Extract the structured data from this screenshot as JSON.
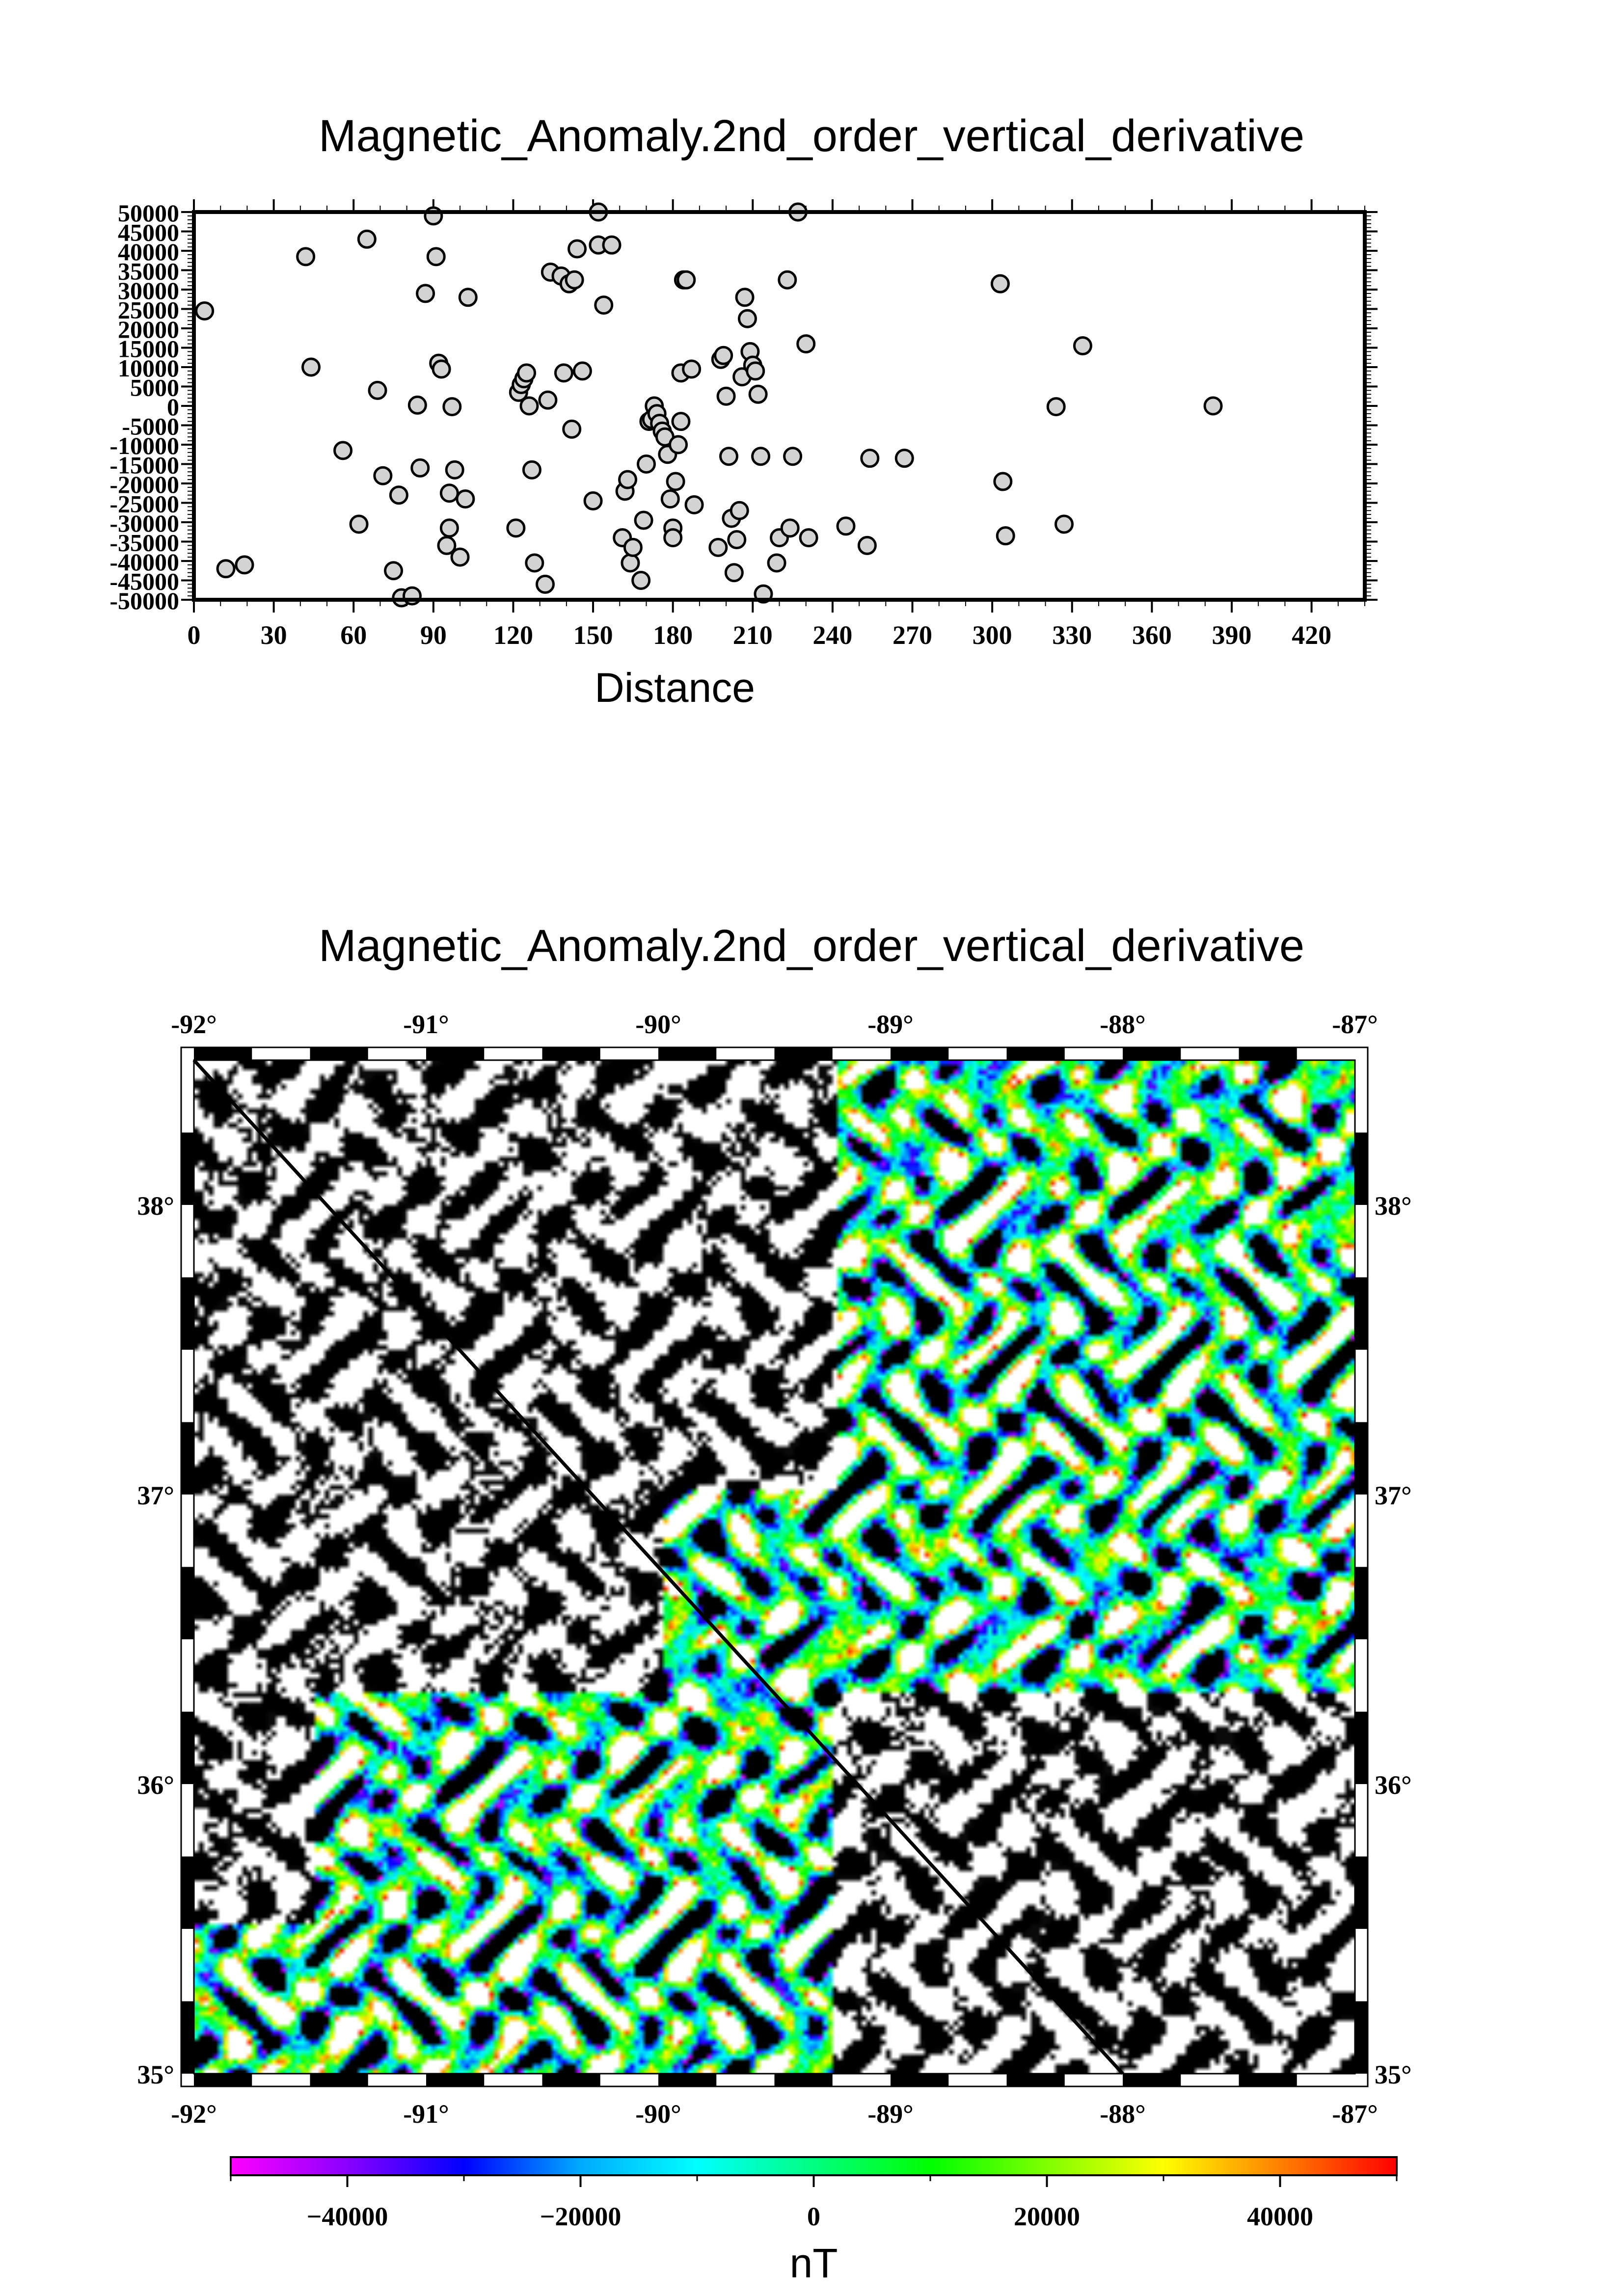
{
  "chart_data": [
    {
      "type": "scatter",
      "title": "Magnetic_Anomaly.2nd_order_vertical_derivative",
      "xlabel": "Distance",
      "ylabel": "",
      "xlim": [
        0,
        440
      ],
      "ylim": [
        -50000,
        50000
      ],
      "x_ticks": [
        0,
        30,
        60,
        90,
        120,
        150,
        180,
        210,
        240,
        270,
        300,
        330,
        360,
        390,
        420
      ],
      "y_ticks": [
        50000,
        45000,
        40000,
        35000,
        30000,
        25000,
        20000,
        15000,
        10000,
        5000,
        0,
        -5000,
        -10000,
        -15000,
        -20000,
        -25000,
        -30000,
        -35000,
        -40000,
        -45000,
        -50000
      ],
      "grid": false,
      "marker": {
        "shape": "circle",
        "fill": "#d3d3d3",
        "edge": "#000000"
      },
      "points": [
        [
          4,
          24500
        ],
        [
          12,
          -42000
        ],
        [
          19,
          -41000
        ],
        [
          42,
          38500
        ],
        [
          44,
          10000
        ],
        [
          56,
          -11500
        ],
        [
          62,
          -30500
        ],
        [
          65,
          43000
        ],
        [
          69,
          4000
        ],
        [
          71,
          -18000
        ],
        [
          75,
          -42500
        ],
        [
          77,
          -23000
        ],
        [
          78,
          -49500
        ],
        [
          82,
          -49000
        ],
        [
          84,
          200
        ],
        [
          85,
          -16000
        ],
        [
          87,
          29000
        ],
        [
          90,
          49000
        ],
        [
          91,
          38500
        ],
        [
          92,
          11000
        ],
        [
          93,
          9500
        ],
        [
          95,
          -36000
        ],
        [
          96,
          -31500
        ],
        [
          96,
          -22500
        ],
        [
          97,
          -200
        ],
        [
          98,
          -16500
        ],
        [
          100,
          -39000
        ],
        [
          102,
          -24000
        ],
        [
          103,
          28000
        ],
        [
          121,
          -31500
        ],
        [
          122,
          3500
        ],
        [
          123,
          5500
        ],
        [
          124,
          7000
        ],
        [
          125,
          8500
        ],
        [
          126,
          0
        ],
        [
          127,
          -16500
        ],
        [
          128,
          -40500
        ],
        [
          132,
          -46000
        ],
        [
          133,
          1500
        ],
        [
          134,
          34500
        ],
        [
          138,
          33500
        ],
        [
          139,
          8500
        ],
        [
          141,
          31500
        ],
        [
          142,
          -6000
        ],
        [
          143,
          32500
        ],
        [
          144,
          40500
        ],
        [
          146,
          9000
        ],
        [
          150,
          -24500
        ],
        [
          152,
          50000
        ],
        [
          152,
          41500
        ],
        [
          154,
          26000
        ],
        [
          157,
          41500
        ],
        [
          161,
          -34000
        ],
        [
          162,
          -22000
        ],
        [
          163,
          -19000
        ],
        [
          164,
          -40500
        ],
        [
          165,
          -36500
        ],
        [
          168,
          -45000
        ],
        [
          169,
          -29500
        ],
        [
          170,
          -15000
        ],
        [
          171,
          -4000
        ],
        [
          172,
          -3500
        ],
        [
          173,
          0
        ],
        [
          174,
          -2000
        ],
        [
          175,
          -4500
        ],
        [
          176,
          -6500
        ],
        [
          177,
          -8000
        ],
        [
          178,
          -12500
        ],
        [
          179,
          -24000
        ],
        [
          180,
          -31500
        ],
        [
          180,
          -34000
        ],
        [
          181,
          -19500
        ],
        [
          182,
          -10000
        ],
        [
          183,
          -4000
        ],
        [
          183,
          8500
        ],
        [
          184,
          32500
        ],
        [
          185,
          32500
        ],
        [
          187,
          9500
        ],
        [
          188,
          -25500
        ],
        [
          197,
          -36500
        ],
        [
          198,
          12000
        ],
        [
          199,
          13000
        ],
        [
          200,
          2500
        ],
        [
          201,
          -13000
        ],
        [
          202,
          -29000
        ],
        [
          203,
          -43000
        ],
        [
          204,
          -34500
        ],
        [
          205,
          -27000
        ],
        [
          206,
          7500
        ],
        [
          207,
          28000
        ],
        [
          208,
          22500
        ],
        [
          209,
          14000
        ],
        [
          210,
          10500
        ],
        [
          211,
          9000
        ],
        [
          212,
          3000
        ],
        [
          213,
          -13000
        ],
        [
          214,
          -48500
        ],
        [
          219,
          -40500
        ],
        [
          220,
          -34000
        ],
        [
          223,
          32500
        ],
        [
          224,
          -31500
        ],
        [
          225,
          -13000
        ],
        [
          227,
          50000
        ],
        [
          230,
          16000
        ],
        [
          231,
          -34000
        ],
        [
          245,
          -31000
        ],
        [
          253,
          -36000
        ],
        [
          254,
          -13500
        ],
        [
          267,
          -13500
        ],
        [
          303,
          31500
        ],
        [
          304,
          -19500
        ],
        [
          305,
          -33500
        ],
        [
          324,
          -200
        ],
        [
          327,
          -30500
        ],
        [
          334,
          15500
        ],
        [
          383,
          0
        ]
      ]
    },
    {
      "type": "heatmap",
      "title": "Magnetic_Anomaly.2nd_order_vertical_derivative",
      "x_range": [
        -92,
        -87
      ],
      "y_range": [
        35,
        38.5
      ],
      "x_ticks": [
        "-92°",
        "-91°",
        "-90°",
        "-89°",
        "-88°",
        "-87°"
      ],
      "y_ticks": [
        "35°",
        "36°",
        "37°",
        "38°"
      ],
      "colorbar": {
        "label": "nT",
        "range": [
          -50000,
          50000
        ],
        "ticks": [
          -40000,
          -20000,
          0,
          20000,
          40000
        ],
        "colors": [
          "#ff00ff",
          "#8a00ff",
          "#0000ff",
          "#00aaff",
          "#00ffff",
          "#00ff80",
          "#00ff00",
          "#80ff00",
          "#ffff00",
          "#ff8000",
          "#ff0000"
        ]
      },
      "profile_line": {
        "from": [
          -92,
          38.5
        ],
        "to": [
          -88,
          35
        ]
      }
    }
  ]
}
